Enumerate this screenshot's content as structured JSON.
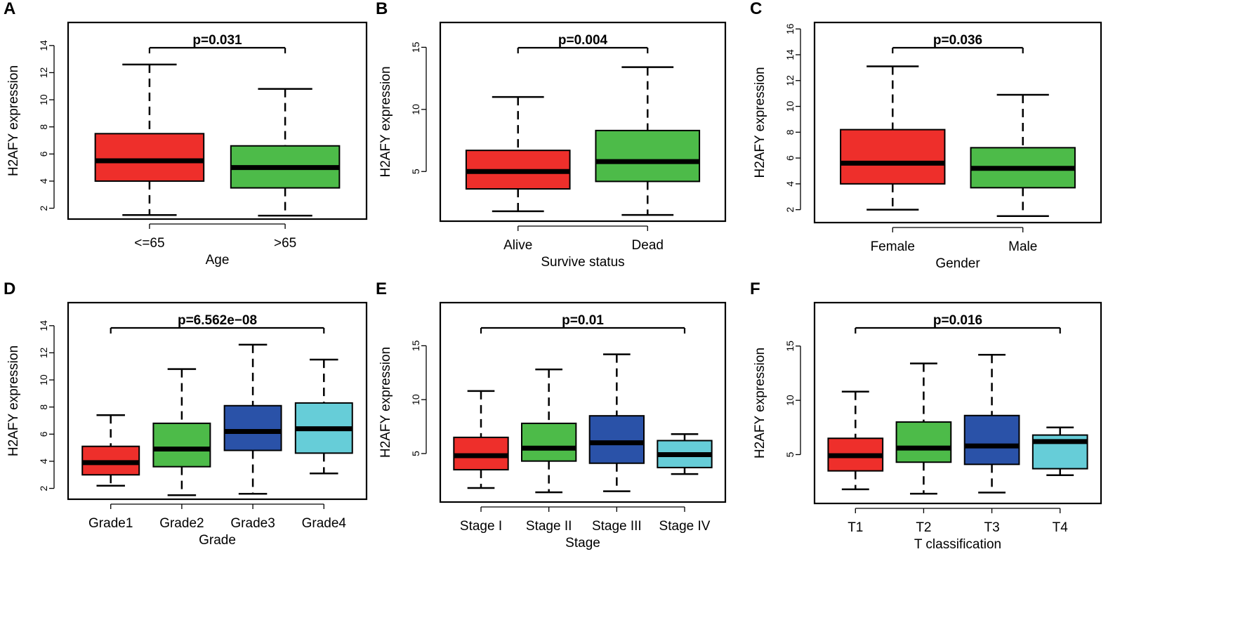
{
  "figure": {
    "ylabel": "H2AFY expression",
    "colors": {
      "red": "#ee2f2b",
      "green": "#4dbb49",
      "blue": "#2a52a8",
      "cyan": "#66cdd8",
      "line": "#000000"
    }
  },
  "chart_data": [
    {
      "panel": "A",
      "type": "box",
      "xlabel": "Age",
      "ylabel": "H2AFY expression",
      "pvalue": "p=0.031",
      "ylim": [
        1.2,
        15.7
      ],
      "yticks": [
        2,
        4,
        6,
        8,
        10,
        12,
        14
      ],
      "categories": [
        "<=65",
        ">65"
      ],
      "boxes": [
        {
          "label": "<=65",
          "whisker_low": 1.5,
          "q1": 4.0,
          "median": 5.5,
          "q3": 7.5,
          "whisker_high": 12.6,
          "color": "#ee2f2b"
        },
        {
          "label": ">65",
          "whisker_low": 1.45,
          "q1": 3.5,
          "median": 5.0,
          "q3": 6.6,
          "whisker_high": 10.8,
          "color": "#4dbb49"
        }
      ]
    },
    {
      "panel": "B",
      "type": "box",
      "xlabel": "Survive status",
      "ylabel": "H2AFY expression",
      "pvalue": "p=0.004",
      "ylim": [
        1.0,
        17.0
      ],
      "yticks": [
        5,
        10,
        15
      ],
      "categories": [
        "Alive",
        "Dead"
      ],
      "boxes": [
        {
          "label": "Alive",
          "whisker_low": 1.8,
          "q1": 3.6,
          "median": 5.0,
          "q3": 6.7,
          "whisker_high": 11.0,
          "color": "#ee2f2b"
        },
        {
          "label": "Dead",
          "whisker_low": 1.5,
          "q1": 4.2,
          "median": 5.8,
          "q3": 8.3,
          "whisker_high": 13.4,
          "color": "#4dbb49"
        }
      ]
    },
    {
      "panel": "C",
      "type": "box",
      "xlabel": "Gender",
      "ylabel": "H2AFY expression",
      "pvalue": "p=0.036",
      "ylim": [
        1.0,
        16.5
      ],
      "yticks": [
        2,
        4,
        6,
        8,
        10,
        12,
        14,
        16
      ],
      "categories": [
        "Female",
        "Male"
      ],
      "boxes": [
        {
          "label": "Female",
          "whisker_low": 2.0,
          "q1": 4.0,
          "median": 5.6,
          "q3": 8.2,
          "whisker_high": 13.1,
          "color": "#ee2f2b"
        },
        {
          "label": "Male",
          "whisker_low": 1.5,
          "q1": 3.7,
          "median": 5.2,
          "q3": 6.8,
          "whisker_high": 10.9,
          "color": "#4dbb49"
        }
      ]
    },
    {
      "panel": "D",
      "type": "box",
      "xlabel": "Grade",
      "ylabel": "H2AFY expression",
      "pvalue": "p=6.562e−08",
      "ylim": [
        1.2,
        15.7
      ],
      "yticks": [
        2,
        4,
        6,
        8,
        10,
        12,
        14
      ],
      "categories": [
        "Grade1",
        "Grade2",
        "Grade3",
        "Grade4"
      ],
      "boxes": [
        {
          "label": "Grade1",
          "whisker_low": 2.2,
          "q1": 3.0,
          "median": 3.9,
          "q3": 5.1,
          "whisker_high": 7.4,
          "color": "#ee2f2b"
        },
        {
          "label": "Grade2",
          "whisker_low": 1.5,
          "q1": 3.6,
          "median": 4.9,
          "q3": 6.8,
          "whisker_high": 10.8,
          "color": "#4dbb49"
        },
        {
          "label": "Grade3",
          "whisker_low": 1.6,
          "q1": 4.8,
          "median": 6.2,
          "q3": 8.1,
          "whisker_high": 12.6,
          "color": "#2a52a8"
        },
        {
          "label": "Grade4",
          "whisker_low": 3.1,
          "q1": 4.6,
          "median": 6.4,
          "q3": 8.3,
          "whisker_high": 11.5,
          "color": "#66cdd8"
        }
      ]
    },
    {
      "panel": "E",
      "type": "box",
      "xlabel": "Stage",
      "ylabel": "H2AFY expression",
      "pvalue": "p=0.01",
      "ylim": [
        0.5,
        19.0
      ],
      "yticks": [
        5,
        10,
        15
      ],
      "categories": [
        "Stage I",
        "Stage II",
        "Stage III",
        "Stage IV"
      ],
      "boxes": [
        {
          "label": "Stage I",
          "whisker_low": 1.8,
          "q1": 3.5,
          "median": 4.8,
          "q3": 6.5,
          "whisker_high": 10.8,
          "color": "#ee2f2b"
        },
        {
          "label": "Stage II",
          "whisker_low": 1.4,
          "q1": 4.3,
          "median": 5.5,
          "q3": 7.8,
          "whisker_high": 12.8,
          "color": "#4dbb49"
        },
        {
          "label": "Stage III",
          "whisker_low": 1.5,
          "q1": 4.1,
          "median": 6.0,
          "q3": 8.5,
          "whisker_high": 14.2,
          "color": "#2a52a8"
        },
        {
          "label": "Stage IV",
          "whisker_low": 3.1,
          "q1": 3.7,
          "median": 4.9,
          "q3": 6.2,
          "whisker_high": 6.8,
          "color": "#66cdd8"
        }
      ]
    },
    {
      "panel": "F",
      "type": "box",
      "xlabel": "T classification",
      "ylabel": "H2AFY expression",
      "pvalue": "p=0.016",
      "ylim": [
        0.5,
        19.0
      ],
      "yticks": [
        5,
        10,
        15
      ],
      "categories": [
        "T1",
        "T2",
        "T3",
        "T4"
      ],
      "boxes": [
        {
          "label": "T1",
          "whisker_low": 1.8,
          "q1": 3.5,
          "median": 4.9,
          "q3": 6.5,
          "whisker_high": 10.8,
          "color": "#ee2f2b"
        },
        {
          "label": "T2",
          "whisker_low": 1.4,
          "q1": 4.3,
          "median": 5.6,
          "q3": 8.0,
          "whisker_high": 13.4,
          "color": "#4dbb49"
        },
        {
          "label": "T3",
          "whisker_low": 1.5,
          "q1": 4.1,
          "median": 5.8,
          "q3": 8.6,
          "whisker_high": 14.2,
          "color": "#2a52a8"
        },
        {
          "label": "T4",
          "whisker_low": 3.1,
          "q1": 3.7,
          "median": 6.2,
          "q3": 6.8,
          "whisker_high": 7.5,
          "color": "#66cdd8"
        }
      ]
    }
  ]
}
